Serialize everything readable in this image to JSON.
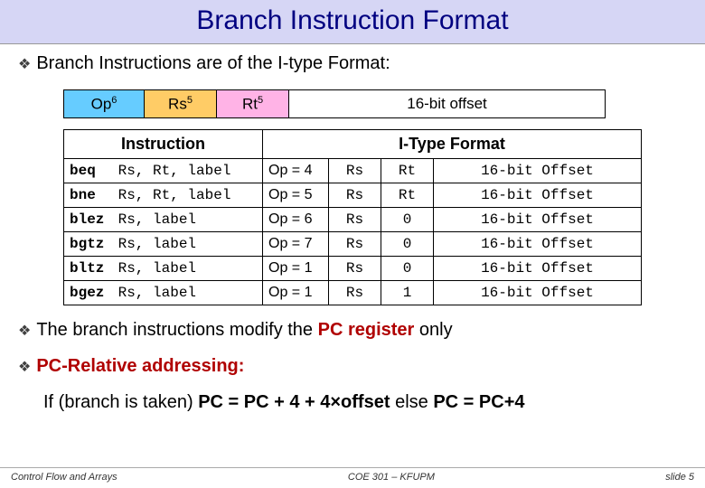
{
  "title": "Branch Instruction Format",
  "intro_text": "Branch Instructions are of the I-type Format:",
  "format_fields": {
    "op": {
      "label": "Op",
      "sup": "6",
      "bg": "#66ccff"
    },
    "rs": {
      "label": "Rs",
      "sup": "5",
      "bg": "#ffcc66"
    },
    "rt": {
      "label": "Rt",
      "sup": "5",
      "bg": "#ffb3e6"
    },
    "offset": {
      "label": "16-bit offset",
      "bg": "#ffffff"
    }
  },
  "table": {
    "left_header": "Instruction",
    "right_header": "I-Type Format",
    "rows": [
      {
        "mnem": "beq",
        "args": "Rs, Rt, label",
        "op": "Op = 4",
        "rs": "Rs",
        "rt": "Rt",
        "off": "16-bit Offset"
      },
      {
        "mnem": "bne",
        "args": "Rs, Rt, label",
        "op": "Op = 5",
        "rs": "Rs",
        "rt": "Rt",
        "off": "16-bit Offset"
      },
      {
        "mnem": "blez",
        "args": "Rs, label",
        "op": "Op = 6",
        "rs": "Rs",
        "rt": "0",
        "off": "16-bit Offset"
      },
      {
        "mnem": "bgtz",
        "args": "Rs, label",
        "op": "Op = 7",
        "rs": "Rs",
        "rt": "0",
        "off": "16-bit Offset"
      },
      {
        "mnem": "bltz",
        "args": "Rs, label",
        "op": "Op = 1",
        "rs": "Rs",
        "rt": "0",
        "off": "16-bit Offset"
      },
      {
        "mnem": "bgez",
        "args": "Rs, label",
        "op": "Op = 1",
        "rs": "Rs",
        "rt": "1",
        "off": "16-bit Offset"
      }
    ]
  },
  "line2_pre": "The branch instructions modify the ",
  "line2_pc": "PC register",
  "line2_post": " only",
  "line3": "PC-Relative addressing:",
  "line4_pre": "If (branch is taken) ",
  "line4_eq1": "PC = PC + 4 + 4×offset",
  "line4_mid": " else ",
  "line4_eq2": "PC = PC+4",
  "footer": {
    "left": "Control Flow and Arrays",
    "center": "COE 301 – KFUPM",
    "right": "slide 5"
  },
  "colors": {
    "title_bg": "#d6d6f5",
    "title_fg": "#000080",
    "red": "#b00000"
  }
}
